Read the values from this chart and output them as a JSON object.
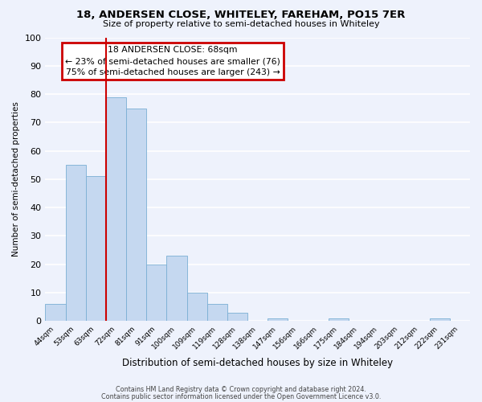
{
  "title": "18, ANDERSEN CLOSE, WHITELEY, FAREHAM, PO15 7ER",
  "subtitle": "Size of property relative to semi-detached houses in Whiteley",
  "xlabel": "Distribution of semi-detached houses by size in Whiteley",
  "ylabel": "Number of semi-detached properties",
  "bin_labels": [
    "44sqm",
    "53sqm",
    "63sqm",
    "72sqm",
    "81sqm",
    "91sqm",
    "100sqm",
    "109sqm",
    "119sqm",
    "128sqm",
    "138sqm",
    "147sqm",
    "156sqm",
    "166sqm",
    "175sqm",
    "184sqm",
    "194sqm",
    "203sqm",
    "212sqm",
    "222sqm",
    "231sqm"
  ],
  "bar_values": [
    6,
    55,
    51,
    79,
    75,
    20,
    23,
    10,
    6,
    3,
    0,
    1,
    0,
    0,
    1,
    0,
    0,
    0,
    0,
    1,
    0
  ],
  "bar_color": "#c5d8f0",
  "bar_edge_color": "#7aafd4",
  "ylim": [
    0,
    100
  ],
  "yticks": [
    0,
    10,
    20,
    30,
    40,
    50,
    60,
    70,
    80,
    90,
    100
  ],
  "vline_color": "#cc0000",
  "annotation_title": "18 ANDERSEN CLOSE: 68sqm",
  "annotation_line1": "← 23% of semi-detached houses are smaller (76)",
  "annotation_line2": "75% of semi-detached houses are larger (243) →",
  "annotation_box_color": "#cc0000",
  "footer1": "Contains HM Land Registry data © Crown copyright and database right 2024.",
  "footer2": "Contains public sector information licensed under the Open Government Licence v3.0.",
  "background_color": "#eef2fc",
  "grid_color": "#ffffff"
}
